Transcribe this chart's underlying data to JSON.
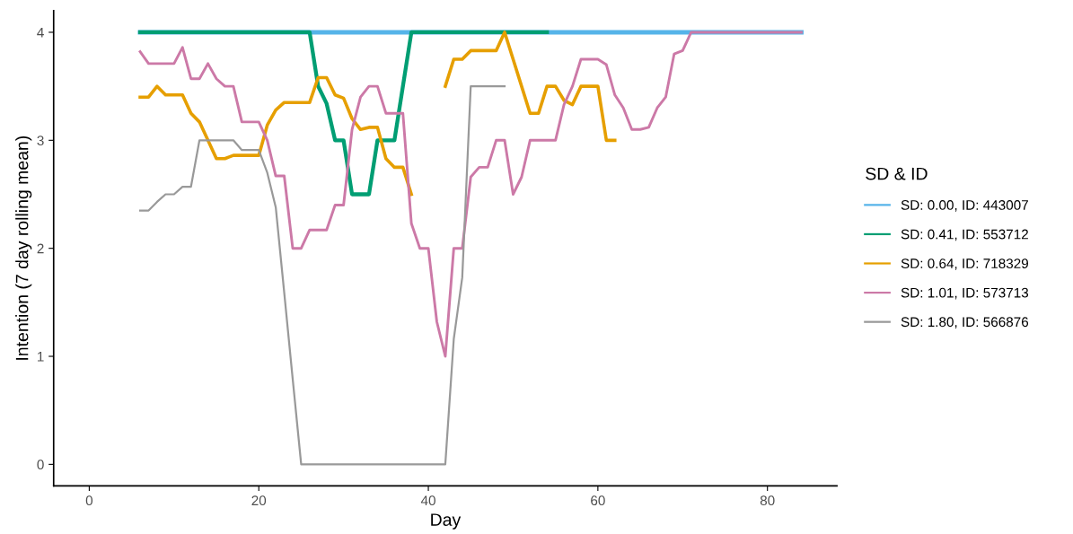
{
  "chart_data": {
    "type": "line",
    "xlabel": "Day",
    "ylabel": "Intention (7 day rolling mean)",
    "legend_title": "SD & ID",
    "legend": "right",
    "grid": false,
    "marker": "none",
    "line_style": "solid",
    "xlim": [
      -4.2,
      88.2
    ],
    "xticks": [
      0,
      20,
      40,
      60,
      80
    ],
    "ylim": [
      -0.2,
      4.2
    ],
    "yticks": [
      0,
      1,
      2,
      3,
      4
    ],
    "series": [
      {
        "name": "SD: 0.00, ID: 443007",
        "color": "#56b4e9",
        "x": [
          6,
          84
        ],
        "values": [
          4,
          4
        ]
      },
      {
        "name": "SD: 0.41, ID: 553712",
        "color": "#009e73",
        "x": [
          6,
          26,
          27,
          28,
          29,
          30,
          31,
          32,
          33,
          34,
          35,
          36,
          37,
          38,
          54
        ],
        "values": [
          4,
          4,
          3.5,
          3.34,
          3.0,
          3.0,
          2.5,
          2.5,
          2.5,
          3.0,
          3.0,
          3.0,
          3.5,
          4,
          4
        ]
      },
      {
        "name": "SD: 0.64, ID: 718329",
        "color": "#e69f00",
        "x": [
          6,
          7,
          8,
          9,
          10,
          11,
          12,
          13,
          14,
          15,
          16,
          17,
          18,
          19,
          20,
          21,
          22,
          23,
          24,
          25,
          26,
          27,
          28,
          29,
          30,
          31,
          32,
          33,
          34,
          35,
          36,
          37,
          38,
          39,
          42,
          43,
          44,
          45,
          46,
          47,
          48,
          49,
          50,
          51,
          52,
          53,
          54,
          55,
          56,
          57,
          58,
          59,
          60,
          61,
          62
        ],
        "values": [
          3.4,
          3.4,
          3.5,
          3.42,
          3.42,
          3.42,
          3.25,
          3.17,
          3.0,
          2.83,
          2.83,
          2.86,
          2.86,
          2.86,
          2.86,
          3.14,
          3.28,
          3.35,
          3.35,
          3.35,
          3.35,
          3.58,
          3.58,
          3.42,
          3.39,
          3.2,
          3.1,
          3.12,
          3.12,
          2.83,
          2.75,
          2.75,
          2.5,
          null,
          3.5,
          3.75,
          3.75,
          3.83,
          3.83,
          3.83,
          3.83,
          4.0,
          3.75,
          3.5,
          3.25,
          3.25,
          3.5,
          3.5,
          3.37,
          3.33,
          3.5,
          3.5,
          3.5,
          3.0,
          3.0
        ]
      },
      {
        "name": "SD: 1.01, ID: 573713",
        "color": "#cc79a7",
        "x": [
          6,
          7,
          8,
          9,
          10,
          11,
          12,
          13,
          14,
          15,
          16,
          17,
          18,
          19,
          20,
          21,
          22,
          23,
          24,
          25,
          26,
          27,
          28,
          29,
          30,
          31,
          32,
          33,
          34,
          35,
          36,
          37,
          38,
          39,
          40,
          41,
          42,
          43,
          44,
          45,
          46,
          47,
          48,
          49,
          50,
          51,
          52,
          53,
          54,
          55,
          56,
          57,
          58,
          59,
          60,
          61,
          62,
          63,
          64,
          65,
          66,
          67,
          68,
          69,
          70,
          71,
          84
        ],
        "values": [
          3.82,
          3.71,
          3.71,
          3.71,
          3.71,
          3.86,
          3.57,
          3.57,
          3.71,
          3.57,
          3.5,
          3.5,
          3.17,
          3.17,
          3.17,
          3.0,
          2.67,
          2.67,
          2.0,
          2.0,
          2.17,
          2.17,
          2.17,
          2.4,
          2.4,
          3.1,
          3.4,
          3.5,
          3.5,
          3.25,
          3.25,
          3.25,
          2.23,
          2.0,
          2.0,
          1.32,
          1.0,
          2.0,
          2.0,
          2.66,
          2.75,
          2.75,
          3.0,
          3.0,
          2.5,
          2.66,
          3.0,
          3.0,
          3.0,
          3.0,
          3.33,
          3.5,
          3.75,
          3.75,
          3.75,
          3.7,
          3.42,
          3.3,
          3.1,
          3.1,
          3.12,
          3.3,
          3.4,
          3.8,
          3.83,
          4.0,
          4.0
        ]
      },
      {
        "name": "SD: 1.80, ID: 566876",
        "color": "#999999",
        "x": [
          6,
          7,
          8,
          9,
          10,
          11,
          12,
          13,
          14,
          15,
          16,
          17,
          18,
          19,
          20,
          21,
          22,
          23,
          24,
          25,
          42,
          43,
          44,
          45,
          46,
          47,
          48,
          49
        ],
        "values": [
          2.35,
          2.35,
          2.43,
          2.5,
          2.5,
          2.57,
          2.57,
          3.0,
          3.0,
          3.0,
          3.0,
          3.0,
          2.91,
          2.91,
          2.91,
          2.7,
          2.38,
          1.59,
          0.79,
          0,
          0,
          1.16,
          1.73,
          3.5,
          3.5,
          3.5,
          3.5,
          3.5
        ]
      }
    ]
  }
}
